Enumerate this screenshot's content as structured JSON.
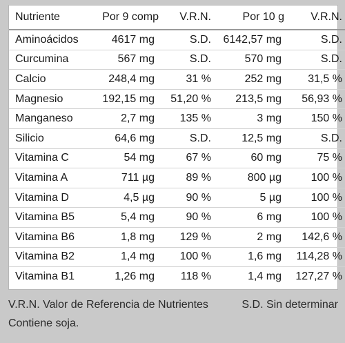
{
  "table": {
    "headers": [
      "Nutriente",
      "Por 9 comp",
      "V.R.N.",
      "Por 10 g",
      "V.R.N."
    ],
    "rows": [
      [
        "Aminoácidos",
        "4617 mg",
        "S.D.",
        "6142,57 mg",
        "S.D."
      ],
      [
        "Curcumina",
        "567 mg",
        "S.D.",
        "570 mg",
        "S.D."
      ],
      [
        "Calcio",
        "248,4 mg",
        "31 %",
        "252 mg",
        "31,5 %"
      ],
      [
        "Magnesio",
        "192,15 mg",
        "51,20 %",
        "213,5 mg",
        "56,93 %"
      ],
      [
        "Manganeso",
        "2,7 mg",
        "135 %",
        "3 mg",
        "150 %"
      ],
      [
        "Silicio",
        "64,6 mg",
        "S.D.",
        "12,5 mg",
        "S.D."
      ],
      [
        "Vitamina C",
        "54 mg",
        "67 %",
        "60 mg",
        "75 %"
      ],
      [
        "Vitamina A",
        "711 µg",
        "89 %",
        "800 µg",
        "100 %"
      ],
      [
        "Vitamina D",
        "4,5 µg",
        "90 %",
        "5 µg",
        "100 %"
      ],
      [
        "Vitamina B5",
        "5,4 mg",
        "90 %",
        "6 mg",
        "100 %"
      ],
      [
        "Vitamina B6",
        "1,8 mg",
        "129 %",
        "2 mg",
        "142,6 %"
      ],
      [
        "Vitamina B2",
        "1,4 mg",
        "100 %",
        "1,6 mg",
        "114,28 %"
      ],
      [
        "Vitamina B1",
        "1,26 mg",
        "118 %",
        "1,4 mg",
        "127,27 %"
      ]
    ]
  },
  "footer": {
    "vrn_note": "V.R.N. Valor de Referencia de Nutrientes",
    "sd_note": "S.D. Sin determinar",
    "allergen_note": "Contiene soja."
  }
}
